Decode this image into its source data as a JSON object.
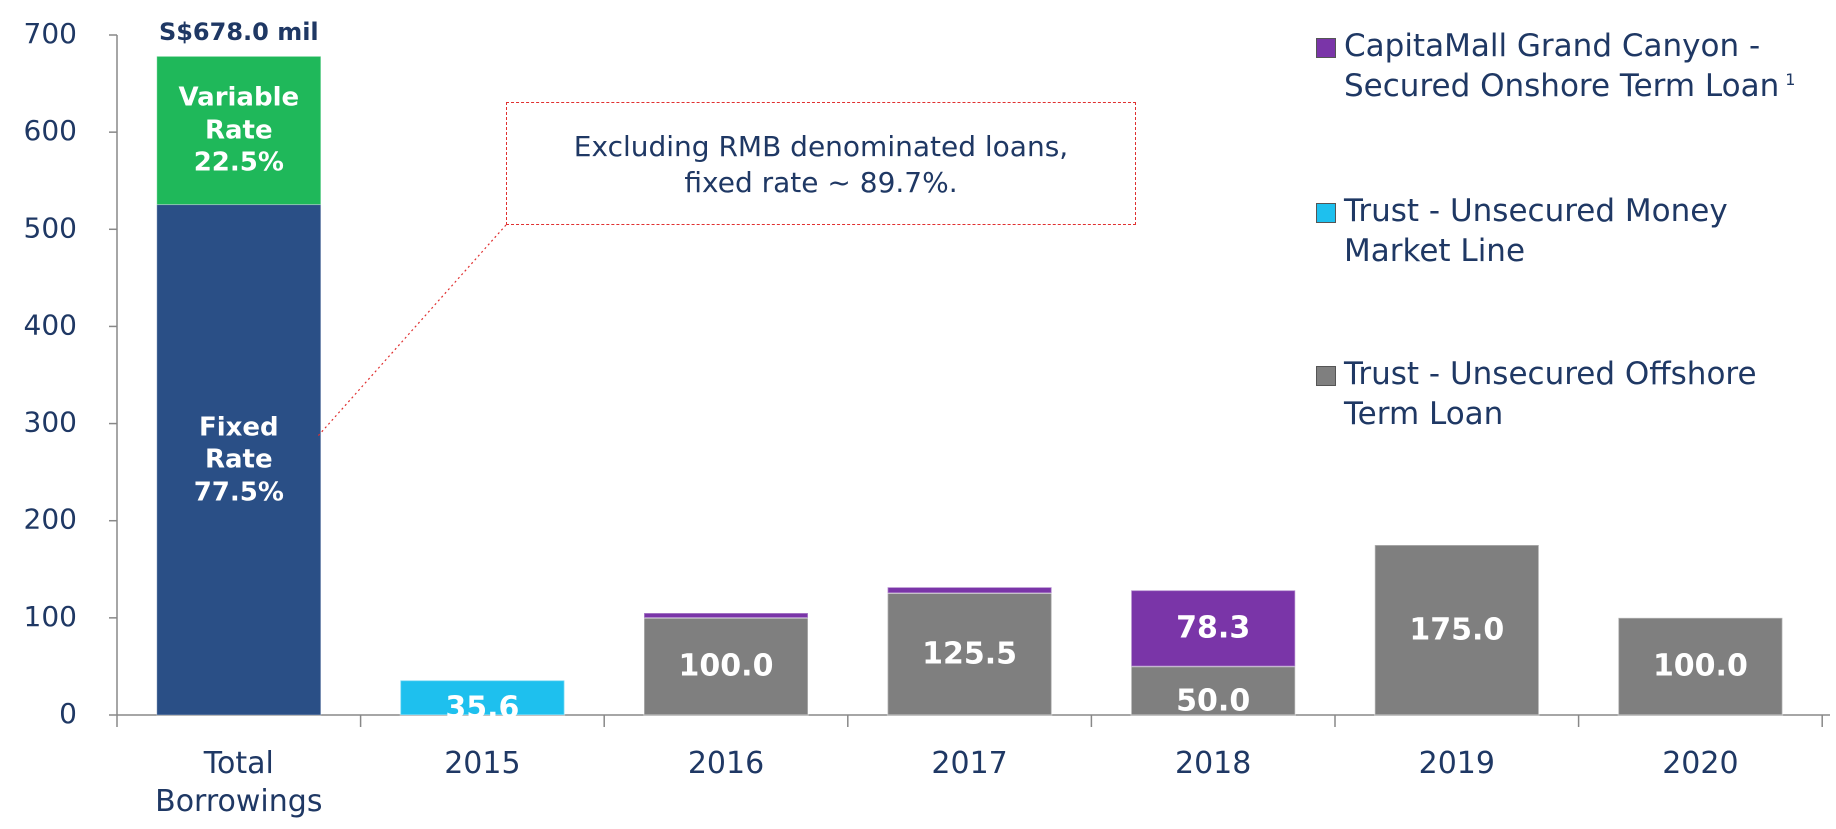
{
  "chart_data": {
    "type": "stacked_bar",
    "categories": [
      "Total Borrowings",
      "2015",
      "2016",
      "2017",
      "2018",
      "2019",
      "2020"
    ],
    "total": {
      "value": 678.0,
      "label": "S$678.0 mil"
    },
    "total_split": [
      {
        "name": "Fixed Rate",
        "color": "#2a4f86",
        "value": 77.5,
        "label": "77.5%"
      },
      {
        "name": "Variable Rate",
        "color": "#1fb85a",
        "value": 22.5,
        "label": "22.5%"
      }
    ],
    "series": [
      {
        "name": "Trust - Unsecured Offshore Term Loan",
        "color": "#7f7f7f",
        "values": [
          null,
          null,
          100.0,
          125.5,
          50.0,
          175.0,
          100.0
        ],
        "value_labels": [
          null,
          null,
          "100.0",
          "125.5",
          "50.0",
          "175.0",
          "100.0"
        ]
      },
      {
        "name": "Trust - Unsecured Money Market Line",
        "color": "#1ec0ee",
        "values": [
          null,
          35.6,
          null,
          null,
          null,
          null,
          null
        ]
      },
      {
        "name": "CapitaMall Grand Canyon - Secured Onshore Term Loan",
        "footnote": "1",
        "color": "#7a35a8",
        "values": [
          null,
          null,
          5.0,
          6.0,
          78.3,
          null,
          null
        ]
      }
    ],
    "annotation": [
      "Excluding RMB denominated loans,",
      "fixed rate ~ 89.7%."
    ],
    "ylim": [
      0,
      700
    ],
    "yticks": [
      0,
      100,
      200,
      300,
      400,
      500,
      600,
      700
    ]
  }
}
